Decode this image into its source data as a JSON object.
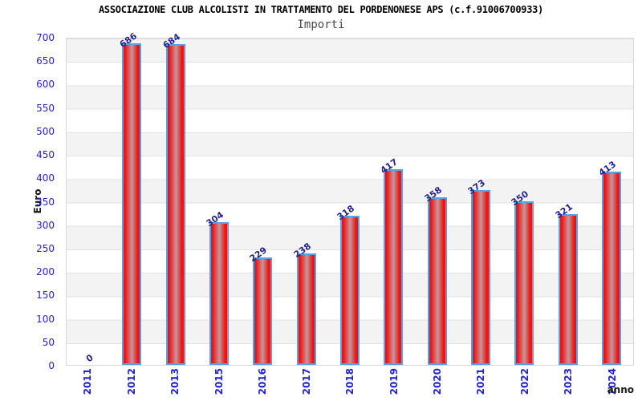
{
  "header": {
    "title": "ASSOCIAZIONE CLUB ALCOLISTI IN TRATTAMENTO DEL PORDENONESE APS (c.f.91006700933)",
    "subtitle": "Importi"
  },
  "axes": {
    "ylabel": "Euro",
    "xlabel": "anno"
  },
  "colors": {
    "tick": "#2323d0",
    "value-label": "#24248a",
    "bar-edge": "#ee1414",
    "bar-mid": "#c4989a",
    "bar-border": "#5aa0e4",
    "band-gray": "#f3f3f3",
    "grid-line": "#e2e2e2",
    "plot-border": "#d9d9d9",
    "subtitle": "#4a4a4a"
  },
  "chart_data": {
    "type": "bar",
    "title": "ASSOCIAZIONE CLUB ALCOLISTI IN TRATTAMENTO DEL PORDENONESE APS (c.f.91006700933)",
    "subtitle": "Importi",
    "xlabel": "anno",
    "ylabel": "Euro",
    "categories": [
      "2011",
      "2012",
      "2013",
      "2015",
      "2016",
      "2017",
      "2018",
      "2019",
      "2020",
      "2021",
      "2022",
      "2023",
      "2024"
    ],
    "values": [
      0,
      686,
      684,
      304,
      229,
      238,
      318,
      417,
      358,
      373,
      350,
      321,
      413
    ],
    "ylim": [
      0,
      700
    ],
    "yticks": [
      0,
      50,
      100,
      150,
      200,
      250,
      300,
      350,
      400,
      450,
      500,
      550,
      600,
      650,
      700
    ],
    "grid": "horizontal-alternating-bands",
    "legend": "none",
    "bar_style": "red-cylinder-gradient-blue-outline",
    "data_label_rotation_deg": -35,
    "x_tick_rotation_deg": -90
  }
}
